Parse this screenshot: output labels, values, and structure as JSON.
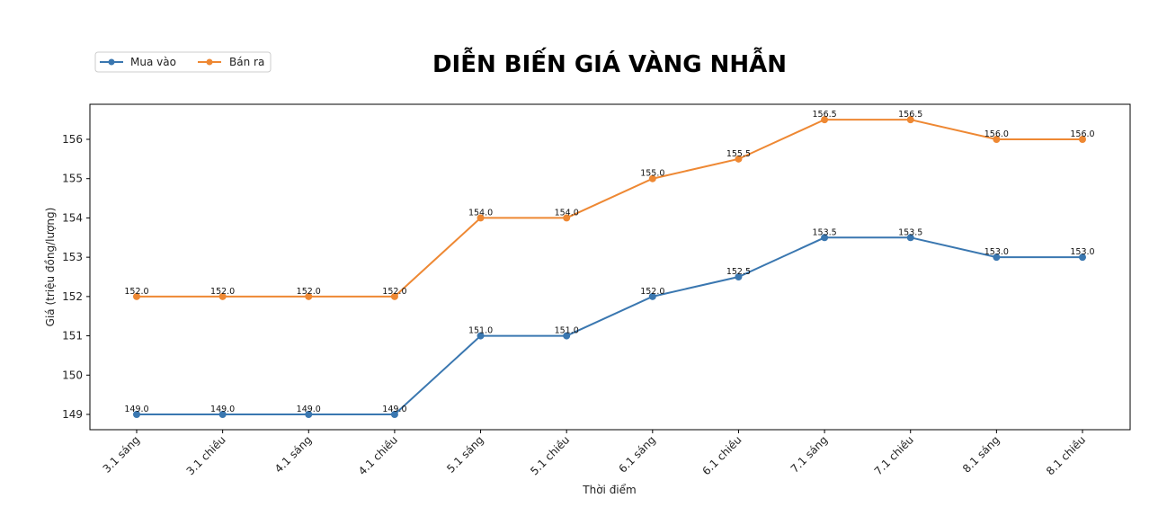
{
  "chart_data": {
    "type": "line",
    "title": "DIỄN BIẾN GIÁ VÀNG NHẪN",
    "xlabel": "Thời điểm",
    "ylabel": "Giá (triệu đồng/lượng)",
    "categories": [
      "3.1 sáng",
      "3.1 chiều",
      "4.1 sáng",
      "4.1 chiều",
      "5.1 sáng",
      "5.1 chiều",
      "6.1 sáng",
      "6.1 chiều",
      "7.1 sáng",
      "7.1 chiều",
      "8.1 sáng",
      "8.1 chiều"
    ],
    "series": [
      {
        "name": "Mua vào",
        "color": "#3a77b0",
        "values": [
          149.0,
          149.0,
          149.0,
          149.0,
          151.0,
          151.0,
          152.0,
          152.5,
          153.5,
          153.5,
          153.0,
          153.0
        ]
      },
      {
        "name": "Bán ra",
        "color": "#ee8833",
        "values": [
          152.0,
          152.0,
          152.0,
          152.0,
          154.0,
          154.0,
          155.0,
          155.5,
          156.5,
          156.5,
          156.0,
          156.0
        ]
      }
    ],
    "yticks": [
      149,
      150,
      151,
      152,
      153,
      154,
      155,
      156
    ],
    "ylim": [
      148.6,
      156.9
    ],
    "grid": false,
    "legend_position": "upper-left-outside",
    "markers": "circle",
    "data_labels": true
  }
}
